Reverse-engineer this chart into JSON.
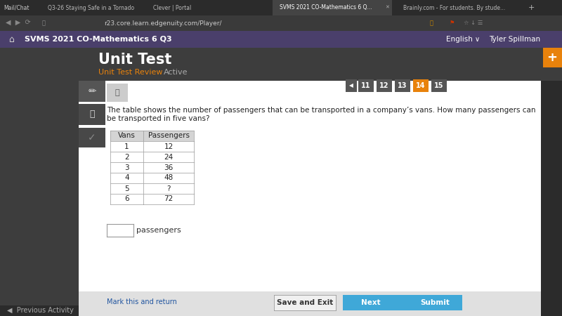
{
  "tab_bar_bg": "#2b2b2b",
  "nav_bar_bg": "#3a3a3a",
  "header_bg": "#4a3f6b",
  "dark_sidebar": "#3d3d3d",
  "dark_heading_bg": "#3d3d3d",
  "white": "#ffffff",
  "content_bg": "#f5f5f5",
  "title": "Unit Test",
  "subtitle": "Unit Test Review",
  "subtitle2": "Active",
  "col_headers": [
    "Vans",
    "Passengers"
  ],
  "table_data": [
    [
      "1",
      "12"
    ],
    [
      "2",
      "24"
    ],
    [
      "3",
      "36"
    ],
    [
      "4",
      "48"
    ],
    [
      "5",
      "?"
    ],
    [
      "6",
      "72"
    ]
  ],
  "input_label": "passengers",
  "page_numbers": [
    "11",
    "12",
    "13",
    "14",
    "15"
  ],
  "active_page": "14",
  "btn_save": "Save and Exit",
  "btn_next": "Next",
  "btn_submit": "Submit",
  "mark_link": "Mark this and return",
  "nav_url": "r23.core.learn.edgenuity.com/Player/",
  "header_label": "SVMS 2021 CO-Mathematics 6 Q3",
  "orange_color": "#e8820c",
  "blue_btn_color": "#3fa8d8",
  "submit_btn_color": "#3fa8d8",
  "table_header_bg": "#d4d4d4",
  "table_border": "#999999",
  "table_row_bg": "#ffffff",
  "bottom_bar_bg": "#e0e0e0",
  "link_color": "#2155a0",
  "q_text_line1": "The table shows the number of passengers that can be transported in a company’s vans. How many passengers can",
  "q_text_line2": "be transported in five vans?"
}
